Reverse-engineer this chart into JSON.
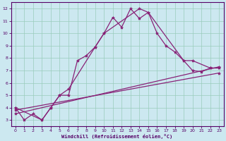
{
  "xlabel": "Windchill (Refroidissement éolien,°C)",
  "bg_color": "#cce8f0",
  "grid_color": "#99ccbb",
  "line_color": "#882277",
  "spine_color": "#550066",
  "tick_color": "#550066",
  "xlim": [
    -0.5,
    23.5
  ],
  "ylim": [
    2.5,
    12.5
  ],
  "xticks": [
    0,
    1,
    2,
    3,
    4,
    5,
    6,
    7,
    8,
    9,
    10,
    11,
    12,
    13,
    14,
    15,
    16,
    17,
    18,
    19,
    20,
    21,
    22,
    23
  ],
  "yticks": [
    3,
    4,
    5,
    6,
    7,
    8,
    9,
    10,
    11,
    12
  ],
  "line1_x": [
    0,
    1,
    2,
    3,
    4,
    5,
    6,
    7,
    8,
    9,
    10,
    11,
    12,
    13,
    14,
    15,
    16,
    17,
    18,
    19,
    20,
    21,
    22,
    23
  ],
  "line1_y": [
    4.0,
    3.0,
    3.5,
    3.0,
    4.0,
    5.0,
    5.0,
    7.8,
    8.2,
    8.9,
    10.0,
    11.3,
    10.5,
    12.0,
    11.2,
    11.7,
    10.0,
    9.0,
    8.5,
    7.8,
    7.0,
    6.9,
    7.2,
    7.2
  ],
  "line2_x": [
    0,
    3,
    4,
    5,
    6,
    9,
    10,
    14,
    15,
    19,
    20,
    22,
    23
  ],
  "line2_y": [
    4.0,
    3.0,
    4.0,
    5.0,
    5.5,
    8.9,
    10.0,
    12.0,
    11.7,
    7.8,
    7.8,
    7.2,
    7.2
  ],
  "line3_x": [
    0,
    23
  ],
  "line3_y": [
    3.5,
    7.3
  ],
  "line4_x": [
    0,
    23
  ],
  "line4_y": [
    3.8,
    6.8
  ],
  "marker": "*",
  "markersize": 3.0,
  "linewidth": 0.9
}
